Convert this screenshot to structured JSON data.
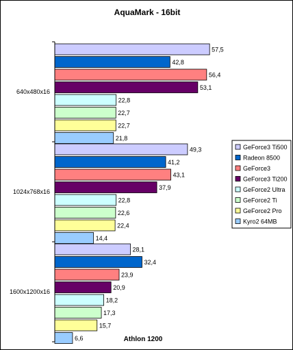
{
  "chart_data": {
    "type": "bar",
    "orientation": "horizontal",
    "title": "AquaMark - 16bit",
    "xlabel": "Athlon 1200",
    "ylabel": "",
    "categories": [
      "640x480x16",
      "1024x768x16",
      "1600x1200x16"
    ],
    "xlim": [
      0,
      60
    ],
    "grid": false,
    "legend_position": "right",
    "series": [
      {
        "name": "GeForce3 Ti500",
        "color": "#CCCCFF",
        "values": [
          57.5,
          49.3,
          28.1
        ],
        "labels": [
          "57,5",
          "49,3",
          "28,1"
        ]
      },
      {
        "name": "Radeon 8500",
        "color": "#0066CC",
        "values": [
          42.8,
          41.2,
          32.4
        ],
        "labels": [
          "42,8",
          "41,2",
          "32,4"
        ]
      },
      {
        "name": "GeForce3",
        "color": "#FF8080",
        "values": [
          56.4,
          43.1,
          23.9
        ],
        "labels": [
          "56,4",
          "43,1",
          "23,9"
        ]
      },
      {
        "name": "GeForce3 Ti200",
        "color": "#660066",
        "values": [
          53.1,
          37.9,
          20.9
        ],
        "labels": [
          "53,1",
          "37,9",
          "20,9"
        ]
      },
      {
        "name": "GeForce2 Ultra",
        "color": "#CCFFFF",
        "values": [
          22.8,
          22.8,
          18.2
        ],
        "labels": [
          "22,8",
          "22,8",
          "18,2"
        ]
      },
      {
        "name": "GeForce2 Ti",
        "color": "#CCFFCC",
        "values": [
          22.7,
          22.6,
          17.3
        ],
        "labels": [
          "22,7",
          "22,6",
          "17,3"
        ]
      },
      {
        "name": "GeForce2 Pro",
        "color": "#FFFF99",
        "values": [
          22.7,
          22.4,
          15.7
        ],
        "labels": [
          "22,7",
          "22,4",
          "15,7"
        ]
      },
      {
        "name": "Kyro2 64MB",
        "color": "#99CCFF",
        "values": [
          21.8,
          14.4,
          6.6
        ],
        "labels": [
          "21,8",
          "14,4",
          "6,6"
        ]
      }
    ]
  }
}
